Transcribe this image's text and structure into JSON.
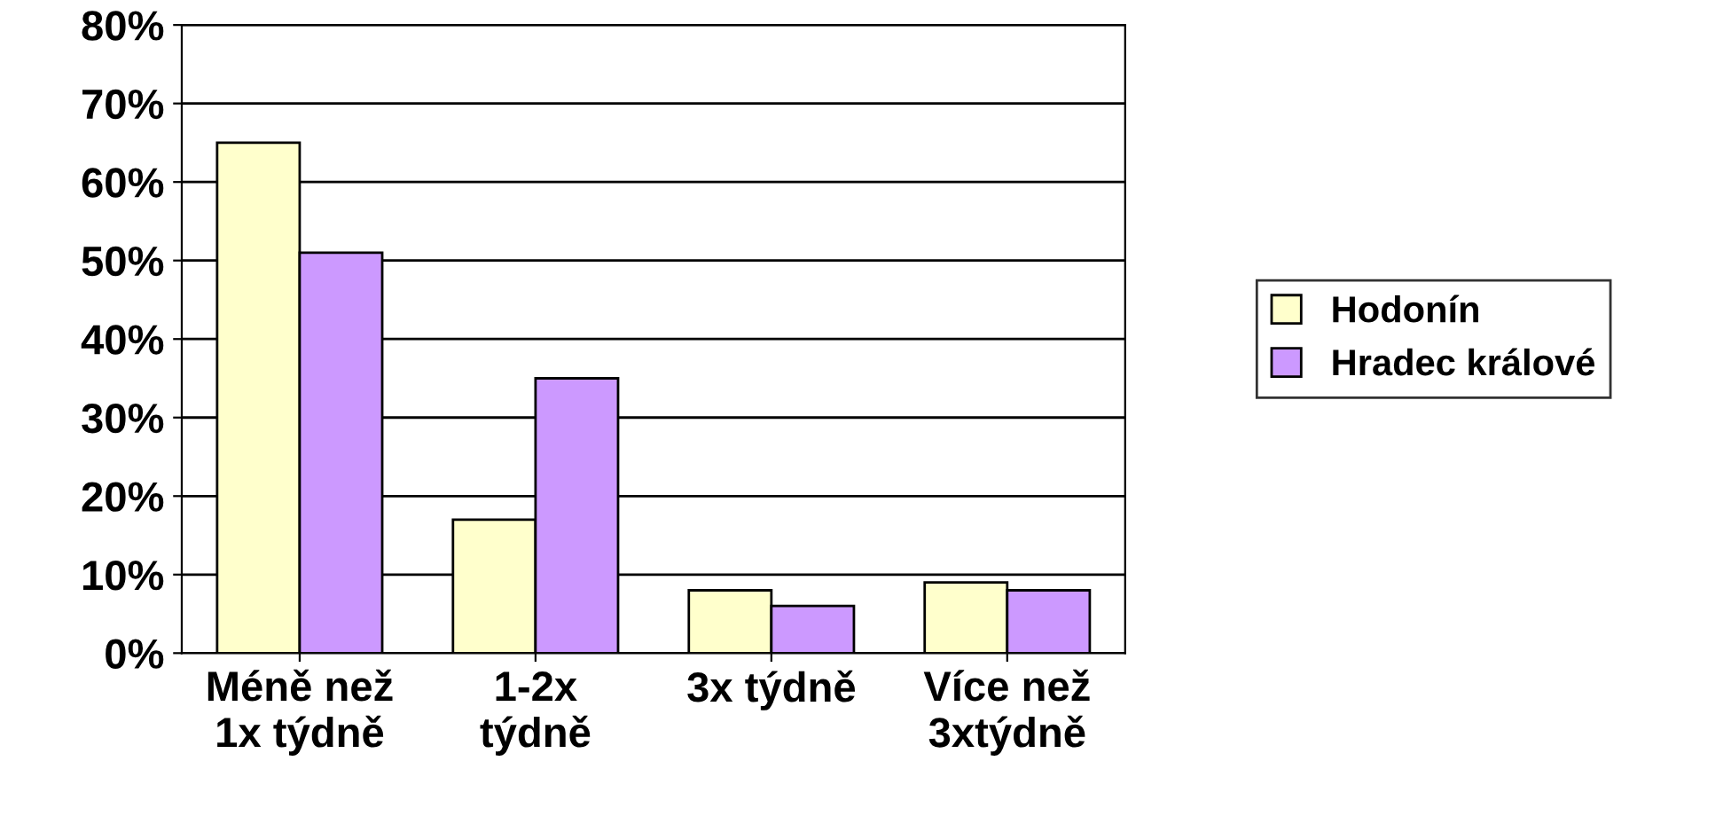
{
  "chart_data": {
    "type": "bar",
    "categories": [
      "Méně než\n1x týdně",
      "1-2x\ntýdně",
      "3x týdně",
      "Více než\n3xtýdně"
    ],
    "series": [
      {
        "name": "Hodonín",
        "color": "#ffffcc",
        "values": [
          65,
          17,
          8,
          9
        ]
      },
      {
        "name": "Hradec králové",
        "color": "#cc99ff",
        "values": [
          51,
          35,
          6,
          8
        ]
      }
    ],
    "ylim": [
      0,
      80
    ],
    "yticks": [
      {
        "value": 0,
        "label": "0%"
      },
      {
        "value": 10,
        "label": "10%"
      },
      {
        "value": 20,
        "label": "20%"
      },
      {
        "value": 30,
        "label": "30%"
      },
      {
        "value": 40,
        "label": "40%"
      },
      {
        "value": 50,
        "label": "50%"
      },
      {
        "value": 60,
        "label": "60%"
      },
      {
        "value": 70,
        "label": "70%"
      },
      {
        "value": 80,
        "label": "80%"
      }
    ],
    "grid": "y",
    "legend": "right"
  }
}
